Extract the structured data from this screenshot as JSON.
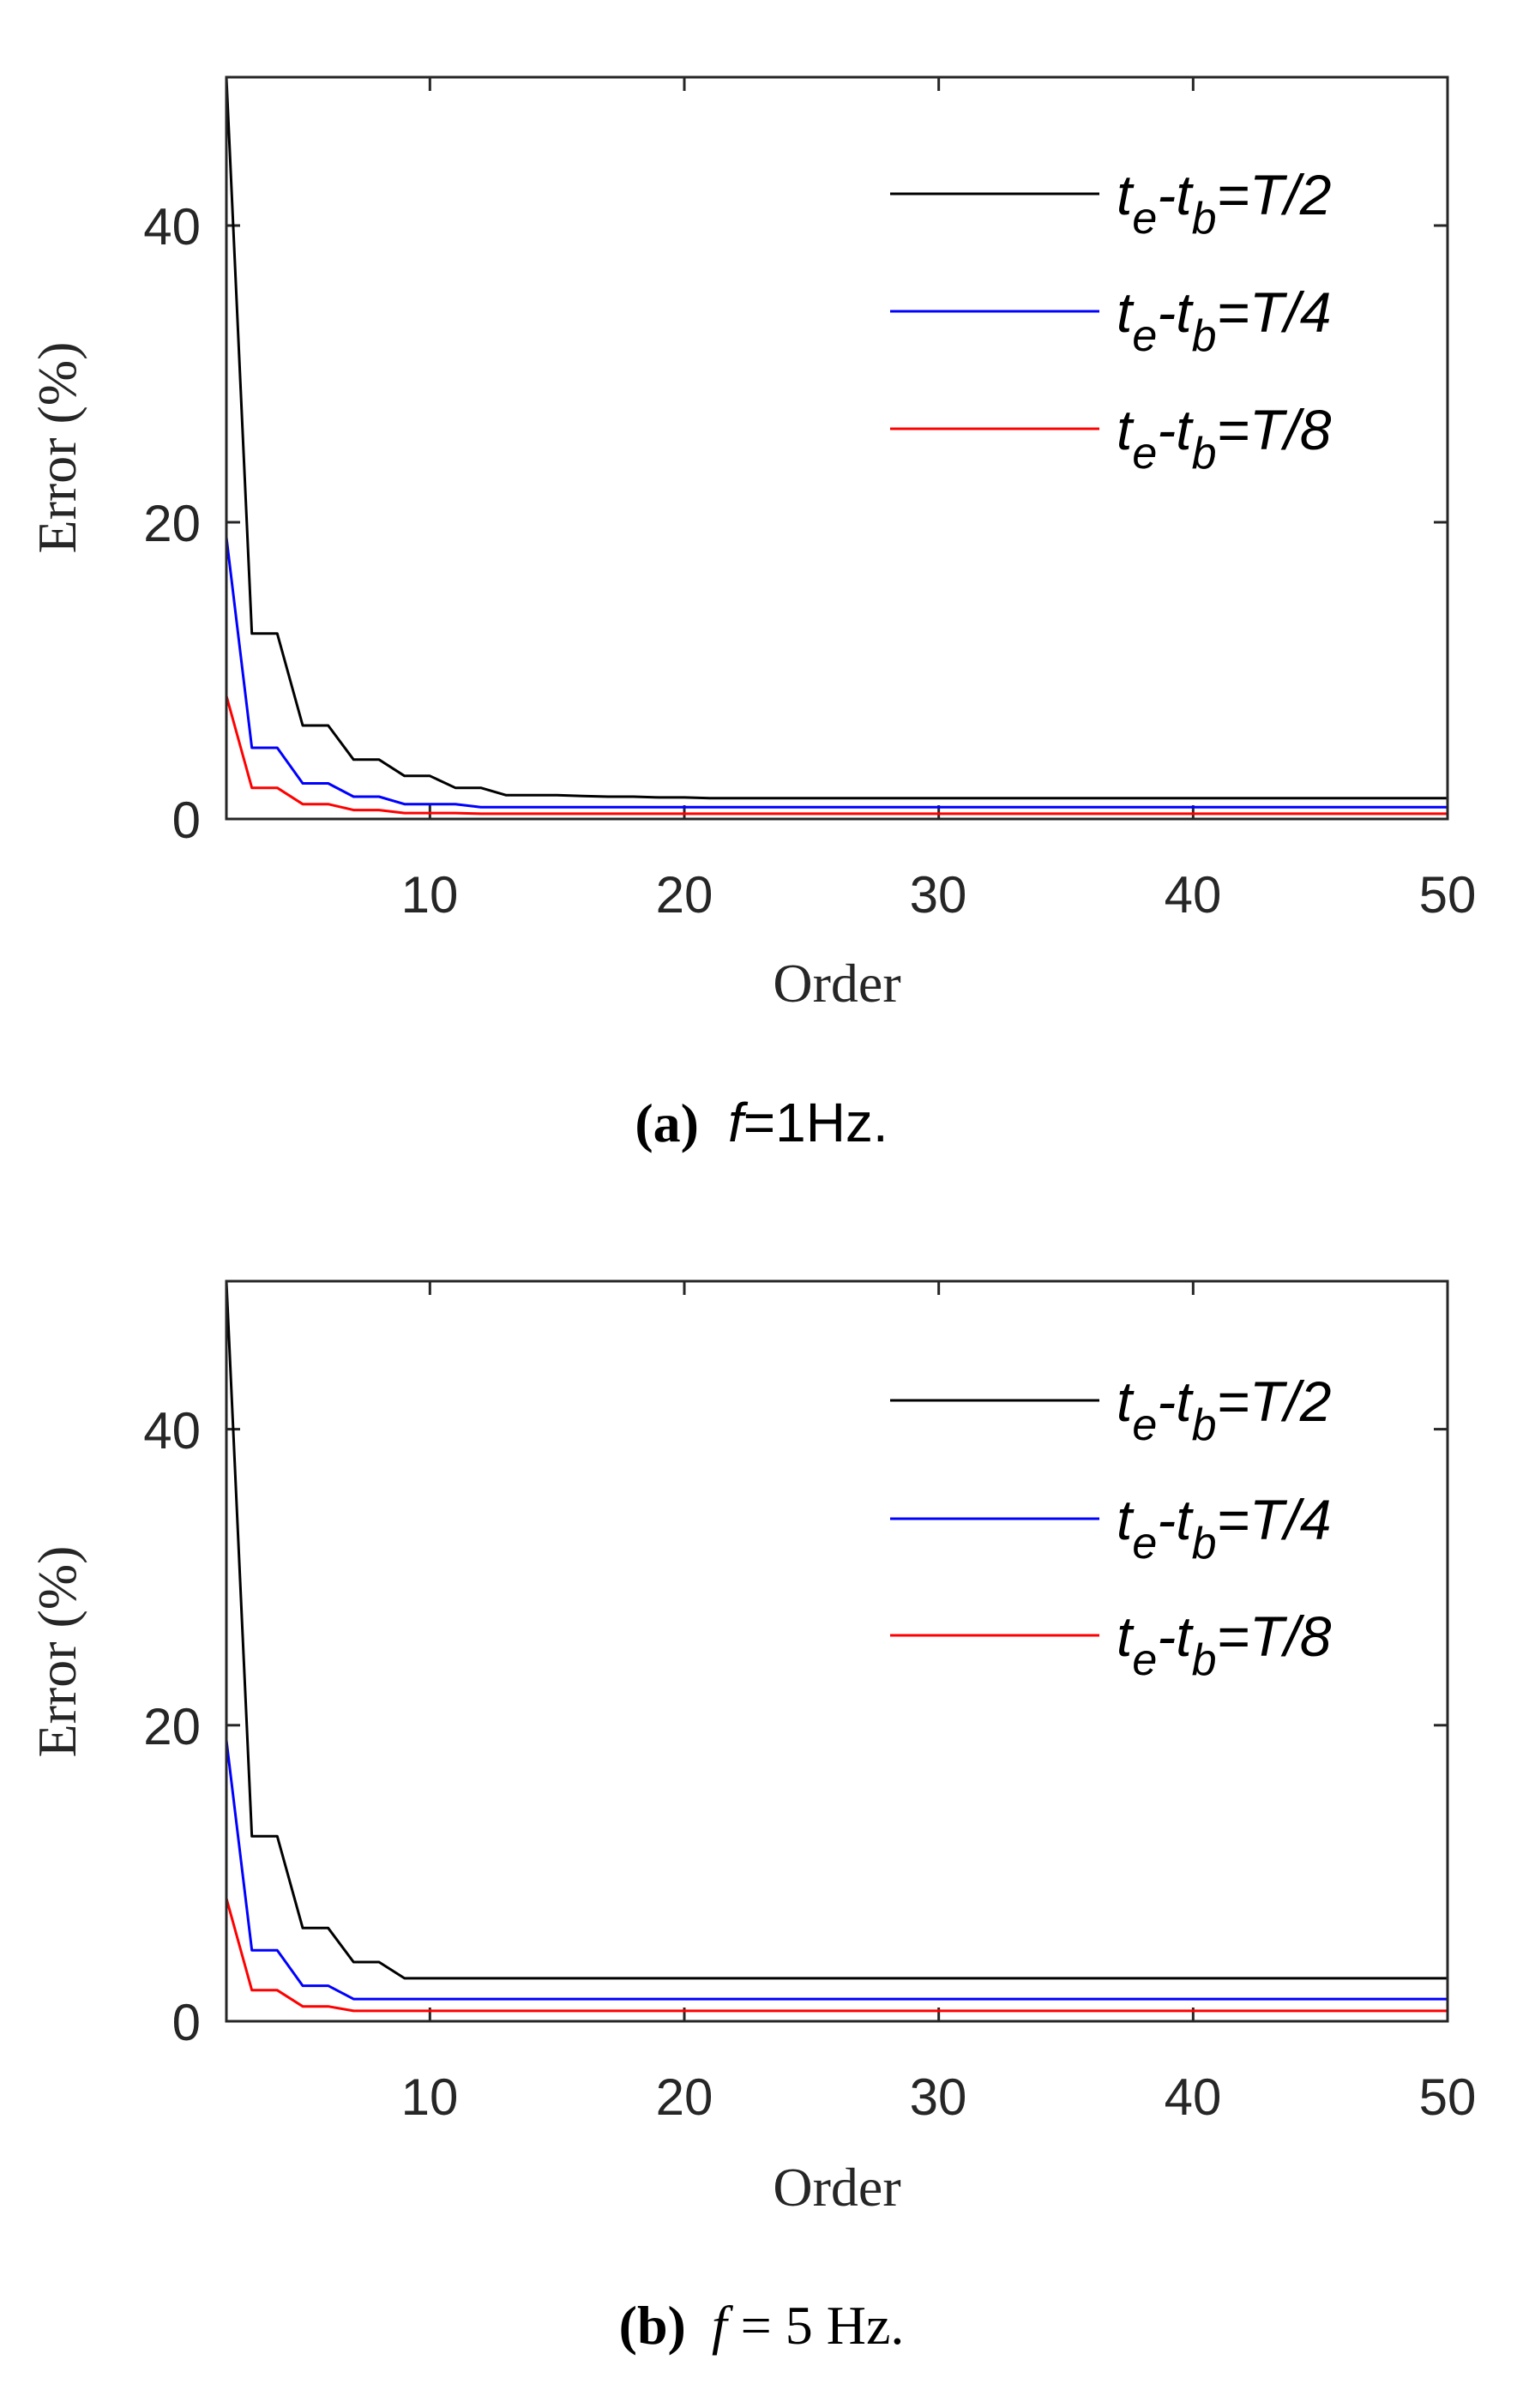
{
  "chart_data": [
    {
      "type": "line",
      "caption": {
        "label": "(a)",
        "var": "f",
        "text": "=1Hz."
      },
      "xlabel": "Order",
      "ylabel": "Error (%)",
      "xlim": [
        2,
        50
      ],
      "ylim": [
        0,
        50
      ],
      "xticks": [
        "10",
        "20",
        "30",
        "40",
        "50"
      ],
      "yticks": [
        "0",
        "20",
        "40"
      ],
      "x": [
        2,
        3,
        4,
        5,
        6,
        7,
        8,
        9,
        10,
        11,
        12,
        13,
        14,
        15,
        16,
        17,
        18,
        19,
        20,
        21,
        22,
        23,
        24,
        25,
        26,
        27,
        28,
        29,
        30,
        31,
        32,
        33,
        34,
        35,
        36,
        37,
        38,
        39,
        40,
        41,
        42,
        43,
        44,
        45,
        46,
        47,
        48,
        49,
        50
      ],
      "series": [
        {
          "name": "te-tb=T/2",
          "legend": {
            "main": "t",
            "sub1": "e",
            "mid": "-t",
            "sub2": "b",
            "tail": "=T/2"
          },
          "color": "#000000",
          "values": [
            50,
            12.5,
            12.5,
            6.3,
            6.3,
            4.0,
            4.0,
            2.9,
            2.9,
            2.1,
            2.1,
            1.6,
            1.6,
            1.6,
            1.55,
            1.5,
            1.5,
            1.45,
            1.45,
            1.4,
            1.4,
            1.4,
            1.4,
            1.4,
            1.4,
            1.4,
            1.4,
            1.4,
            1.4,
            1.4,
            1.4,
            1.4,
            1.4,
            1.4,
            1.4,
            1.4,
            1.4,
            1.4,
            1.4,
            1.4,
            1.4,
            1.4,
            1.4,
            1.4,
            1.4,
            1.4,
            1.4,
            1.4,
            1.4
          ]
        },
        {
          "name": "te-tb=T/4",
          "legend": {
            "main": "t",
            "sub1": "e",
            "mid": "-t",
            "sub2": "b",
            "tail": "=T/4"
          },
          "color": "#0000ff",
          "values": [
            19,
            4.8,
            4.8,
            2.4,
            2.4,
            1.5,
            1.5,
            1.0,
            1.0,
            1.0,
            0.8,
            0.8,
            0.8,
            0.8,
            0.8,
            0.8,
            0.8,
            0.8,
            0.8,
            0.8,
            0.8,
            0.8,
            0.8,
            0.8,
            0.8,
            0.8,
            0.8,
            0.8,
            0.8,
            0.8,
            0.8,
            0.8,
            0.8,
            0.8,
            0.8,
            0.8,
            0.8,
            0.8,
            0.8,
            0.8,
            0.8,
            0.8,
            0.8,
            0.8,
            0.8,
            0.8,
            0.8,
            0.8,
            0.8
          ]
        },
        {
          "name": "te-tb=T/8",
          "legend": {
            "main": "t",
            "sub1": "e",
            "mid": "-t",
            "sub2": "b",
            "tail": "=T/8"
          },
          "color": "#ff0000",
          "values": [
            8.3,
            2.1,
            2.1,
            1.0,
            1.0,
            0.6,
            0.6,
            0.4,
            0.4,
            0.4,
            0.35,
            0.35,
            0.35,
            0.35,
            0.35,
            0.35,
            0.35,
            0.35,
            0.35,
            0.35,
            0.35,
            0.35,
            0.35,
            0.35,
            0.35,
            0.35,
            0.35,
            0.35,
            0.35,
            0.35,
            0.35,
            0.35,
            0.35,
            0.35,
            0.35,
            0.35,
            0.35,
            0.35,
            0.35,
            0.35,
            0.35,
            0.35,
            0.35,
            0.35,
            0.35,
            0.35,
            0.35,
            0.35,
            0.35
          ]
        }
      ]
    },
    {
      "type": "line",
      "caption": {
        "label": "(b)",
        "var": "f",
        "text": " = 5 Hz."
      },
      "xlabel": "Order",
      "ylabel": "Error (%)",
      "xlim": [
        2,
        50
      ],
      "ylim": [
        0,
        50
      ],
      "xticks": [
        "10",
        "20",
        "30",
        "40",
        "50"
      ],
      "yticks": [
        "0",
        "20",
        "40"
      ],
      "x": [
        2,
        3,
        4,
        5,
        6,
        7,
        8,
        9,
        10,
        11,
        12,
        13,
        14,
        15,
        16,
        17,
        18,
        19,
        20,
        21,
        22,
        23,
        24,
        25,
        26,
        27,
        28,
        29,
        30,
        31,
        32,
        33,
        34,
        35,
        36,
        37,
        38,
        39,
        40,
        41,
        42,
        43,
        44,
        45,
        46,
        47,
        48,
        49,
        50
      ],
      "series": [
        {
          "name": "te-tb=T/2",
          "legend": {
            "main": "t",
            "sub1": "e",
            "mid": "-t",
            "sub2": "b",
            "tail": "=T/2"
          },
          "color": "#000000",
          "values": [
            50,
            12.5,
            12.5,
            6.3,
            6.3,
            4.0,
            4.0,
            2.9,
            2.9,
            2.9,
            2.9,
            2.9,
            2.9,
            2.9,
            2.9,
            2.9,
            2.9,
            2.9,
            2.9,
            2.9,
            2.9,
            2.9,
            2.9,
            2.9,
            2.9,
            2.9,
            2.9,
            2.9,
            2.9,
            2.9,
            2.9,
            2.9,
            2.9,
            2.9,
            2.9,
            2.9,
            2.9,
            2.9,
            2.9,
            2.9,
            2.9,
            2.9,
            2.9,
            2.9,
            2.9,
            2.9,
            2.9,
            2.9,
            2.9
          ]
        },
        {
          "name": "te-tb=T/4",
          "legend": {
            "main": "t",
            "sub1": "e",
            "mid": "-t",
            "sub2": "b",
            "tail": "=T/4"
          },
          "color": "#0000ff",
          "values": [
            19,
            4.8,
            4.8,
            2.4,
            2.4,
            1.5,
            1.5,
            1.5,
            1.5,
            1.5,
            1.5,
            1.5,
            1.5,
            1.5,
            1.5,
            1.5,
            1.5,
            1.5,
            1.5,
            1.5,
            1.5,
            1.5,
            1.5,
            1.5,
            1.5,
            1.5,
            1.5,
            1.5,
            1.5,
            1.5,
            1.5,
            1.5,
            1.5,
            1.5,
            1.5,
            1.5,
            1.5,
            1.5,
            1.5,
            1.5,
            1.5,
            1.5,
            1.5,
            1.5,
            1.5,
            1.5,
            1.5,
            1.5,
            1.5
          ]
        },
        {
          "name": "te-tb=T/8",
          "legend": {
            "main": "t",
            "sub1": "e",
            "mid": "-t",
            "sub2": "b",
            "tail": "=T/8"
          },
          "color": "#ff0000",
          "values": [
            8.3,
            2.1,
            2.1,
            1.0,
            1.0,
            0.7,
            0.7,
            0.7,
            0.7,
            0.7,
            0.7,
            0.7,
            0.7,
            0.7,
            0.7,
            0.7,
            0.7,
            0.7,
            0.7,
            0.7,
            0.7,
            0.7,
            0.7,
            0.7,
            0.7,
            0.7,
            0.7,
            0.7,
            0.7,
            0.7,
            0.7,
            0.7,
            0.7,
            0.7,
            0.7,
            0.7,
            0.7,
            0.7,
            0.7,
            0.7,
            0.7,
            0.7,
            0.7,
            0.7,
            0.7,
            0.7,
            0.7,
            0.7,
            0.7
          ]
        }
      ]
    }
  ]
}
